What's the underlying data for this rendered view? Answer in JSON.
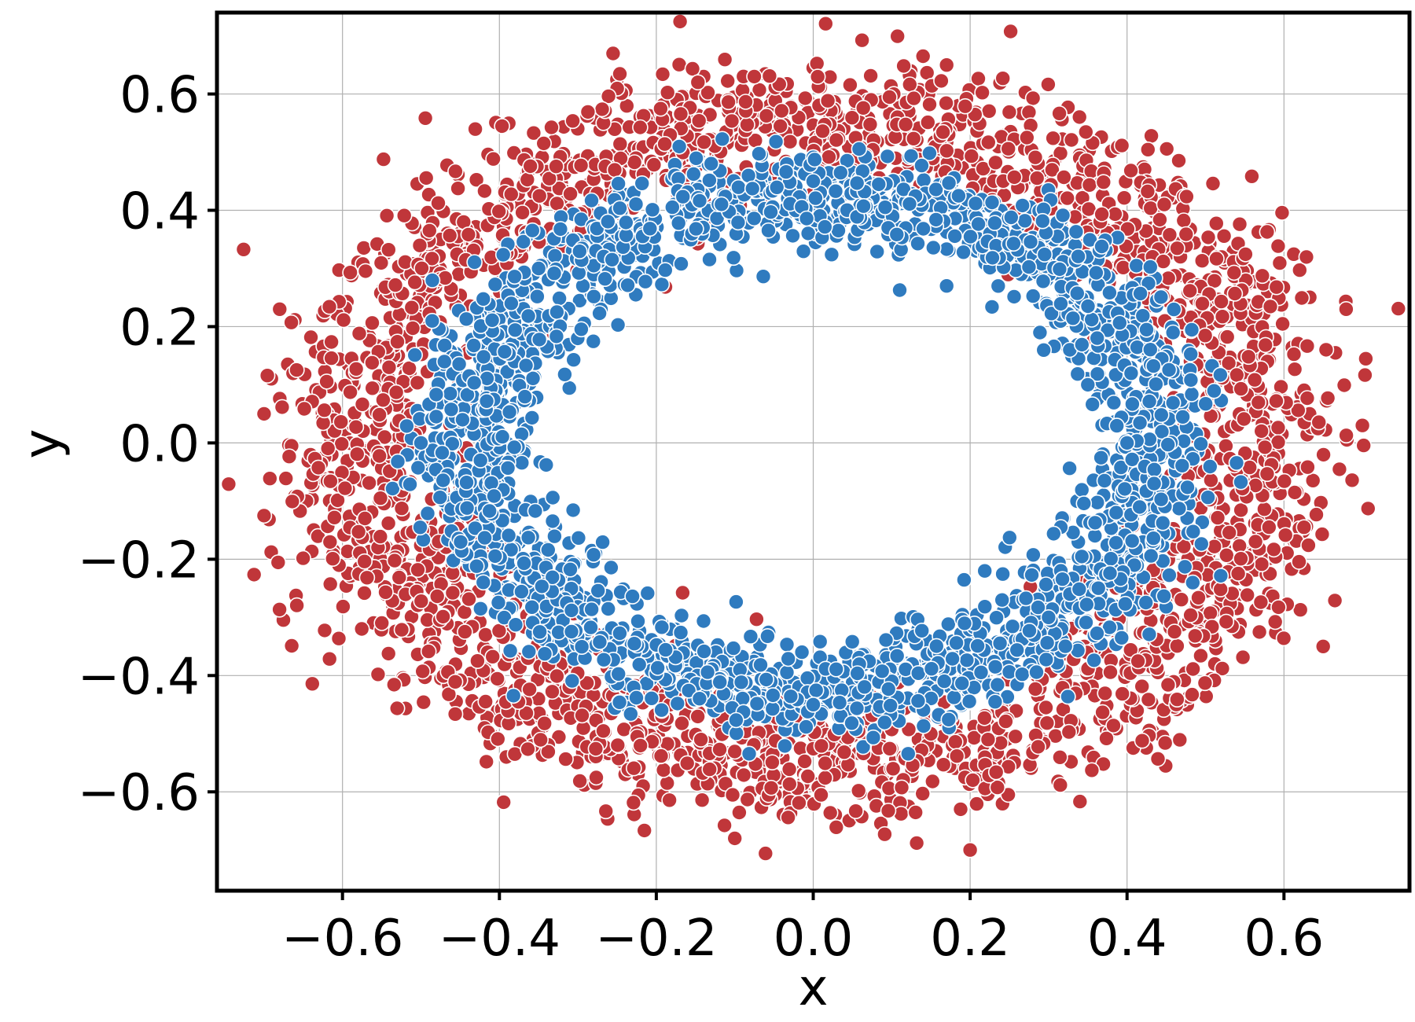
{
  "chart_data": {
    "type": "scatter",
    "title": "",
    "xlabel": "x",
    "ylabel": "y",
    "xlim": [
      -0.76,
      0.76
    ],
    "ylim": [
      -0.77,
      0.74
    ],
    "xticks": [
      -0.6,
      -0.4,
      -0.2,
      0.0,
      0.2,
      0.4,
      0.6
    ],
    "yticks": [
      -0.6,
      -0.4,
      -0.2,
      0.0,
      0.2,
      0.4,
      0.6
    ],
    "xtick_labels": [
      "−0.6",
      "−0.4",
      "−0.2",
      "0.0",
      "0.2",
      "0.4",
      "0.6"
    ],
    "ytick_labels": [
      "−0.6",
      "−0.4",
      "−0.2",
      "0.0",
      "0.2",
      "0.4",
      "0.6"
    ],
    "grid": true,
    "legend": "none",
    "series": [
      {
        "color": "#c0363a",
        "description": "outer ring",
        "ring": {
          "a": 0.575,
          "b": 0.555,
          "band": 0.11
        },
        "approx_point_count": 2600,
        "sample_points": [
          [
            -0.7,
            0.05
          ],
          [
            -0.7,
            -0.125
          ],
          [
            0.7,
            0.03
          ],
          [
            0.65,
            -0.35
          ],
          [
            0.14,
            0.665
          ],
          [
            0.2,
            -0.7
          ],
          [
            -0.68,
            0.23
          ],
          [
            -0.1,
            -0.68
          ]
        ]
      },
      {
        "color": "#2f7bbf",
        "description": "inner ring",
        "ring": {
          "a": 0.435,
          "b": 0.425,
          "band": 0.075
        },
        "approx_point_count": 2300,
        "sample_points": [
          [
            -0.5,
            0.0
          ],
          [
            0.4,
            0.0
          ],
          [
            0.0,
            0.45
          ],
          [
            0.0,
            -0.45
          ],
          [
            -0.35,
            0.3
          ],
          [
            0.3,
            -0.3
          ],
          [
            0.17,
            0.27
          ],
          [
            0.35,
            0.1
          ]
        ]
      }
    ]
  }
}
